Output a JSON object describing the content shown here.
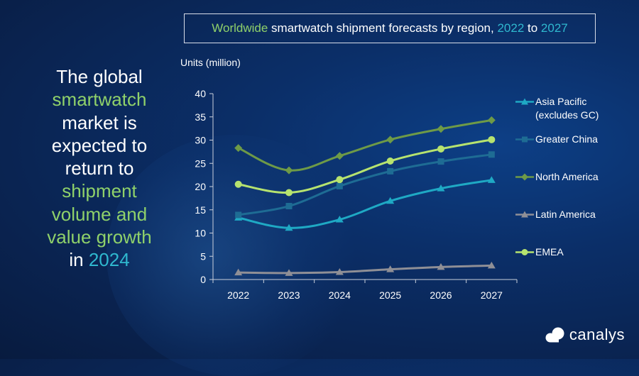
{
  "title": {
    "part1": "Worldwide",
    "part2": " smartwatch shipment forecasts by region, ",
    "part3": "2022",
    "part4": " to ",
    "part5": "2027"
  },
  "headline": {
    "line1": "The global",
    "line2": "smartwatch",
    "line3": "market is",
    "line4": "expected to",
    "line5": "return to",
    "line6": "shipment",
    "line7": "volume and",
    "line8": "value growth",
    "line9a": "in ",
    "line9b": "2024"
  },
  "brand": "canalys",
  "colors": {
    "accent_green": "#8fd16a",
    "accent_teal": "#2fb8cf"
  },
  "chart_data": {
    "type": "line",
    "ylabel": "Units (million)",
    "ylim": [
      0,
      40
    ],
    "yticks": [
      0,
      5,
      10,
      15,
      20,
      25,
      30,
      35,
      40
    ],
    "categories": [
      "2022",
      "2023",
      "2024",
      "2025",
      "2026",
      "2027"
    ],
    "grid": false,
    "legend_position": "right",
    "series": [
      {
        "name": "Asia Pacific\n(excludes GC)",
        "color": "#1fa9c4",
        "marker": "triangle",
        "values": [
          13.3,
          11.1,
          12.9,
          16.9,
          19.6,
          21.4
        ]
      },
      {
        "name": "Greater China",
        "color": "#1e6c94",
        "marker": "square",
        "values": [
          13.9,
          15.8,
          20.1,
          23.3,
          25.4,
          26.9
        ]
      },
      {
        "name": "North America",
        "color": "#6e9a47",
        "marker": "diamond",
        "values": [
          28.3,
          23.5,
          26.6,
          30.1,
          32.4,
          34.3
        ]
      },
      {
        "name": "Latin America",
        "color": "#8f8f96",
        "marker": "triangle",
        "values": [
          1.5,
          1.4,
          1.6,
          2.2,
          2.7,
          3.0
        ]
      },
      {
        "name": "EMEA",
        "color": "#b6e36f",
        "marker": "circle",
        "values": [
          20.5,
          18.7,
          21.5,
          25.5,
          28.1,
          30.1
        ]
      }
    ]
  }
}
